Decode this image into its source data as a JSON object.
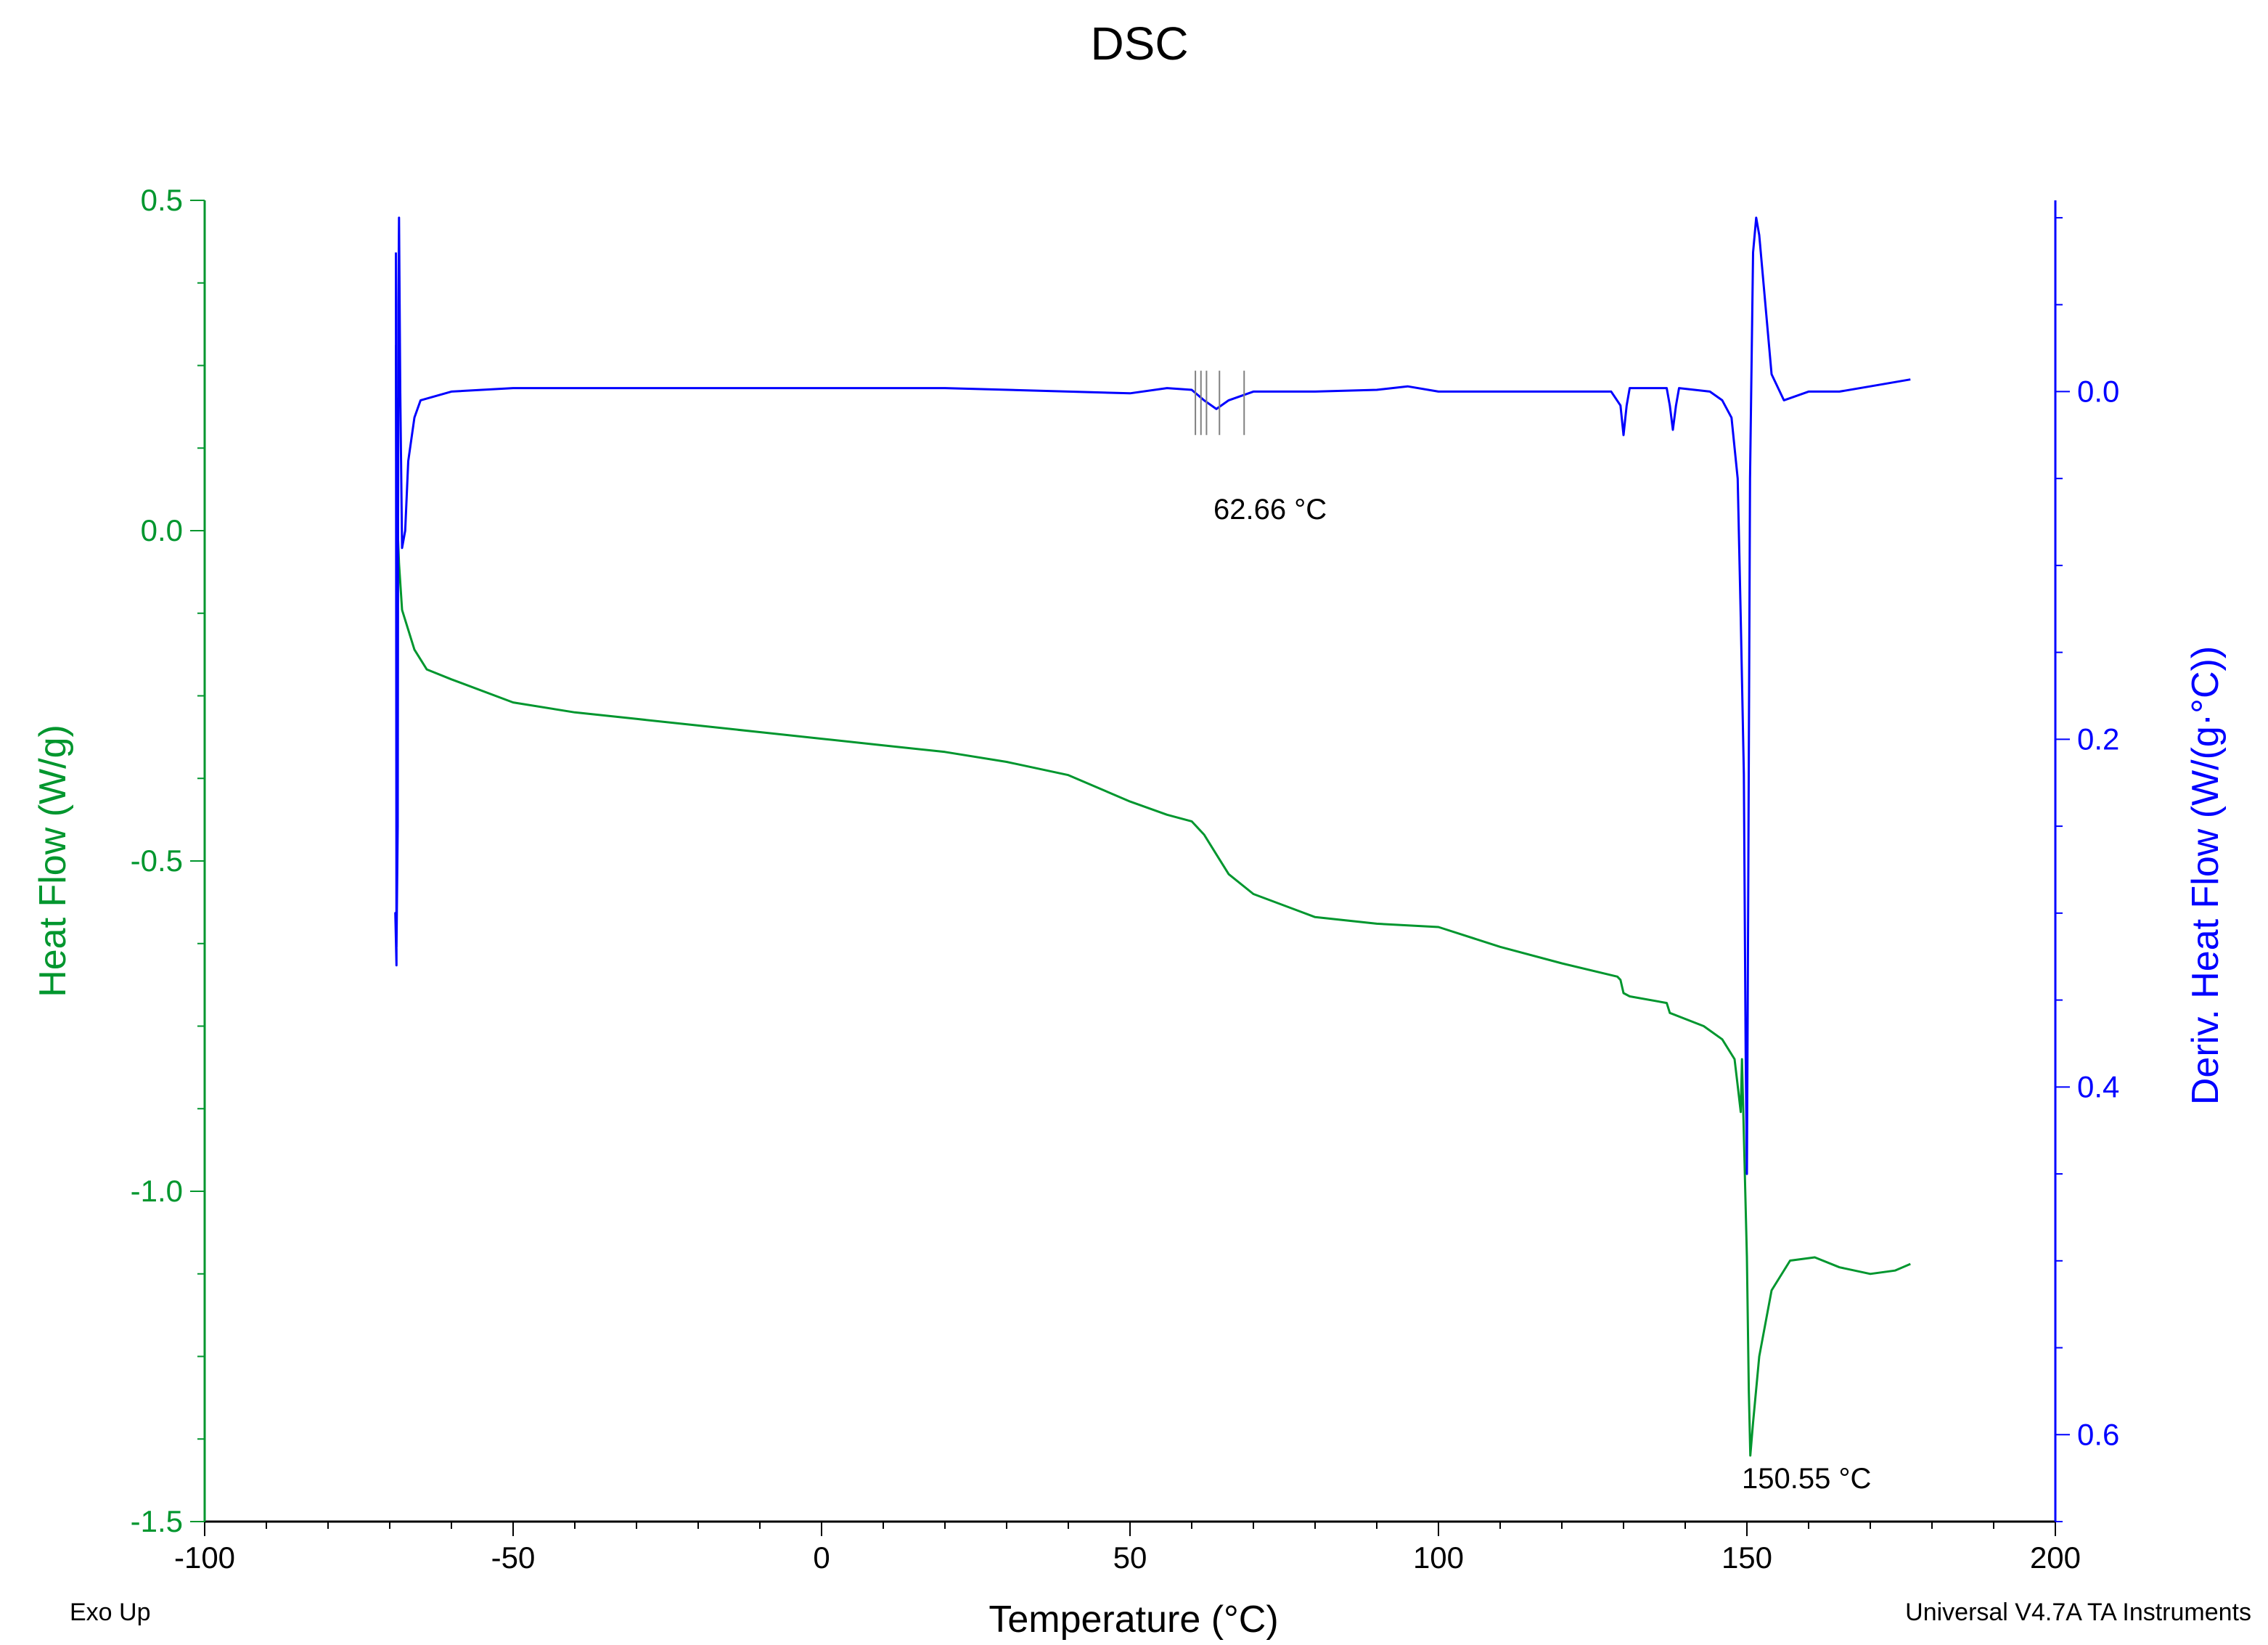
{
  "chart_data": {
    "type": "line",
    "title": "DSC",
    "xlabel": "Temperature (°C)",
    "ylabel_left": "Heat Flow (W/g)",
    "ylabel_right": "Deriv. Heat Flow (W/(g·°C))",
    "xlim": [
      -100,
      200
    ],
    "ylim_left": [
      -1.5,
      0.5
    ],
    "ylim_right": [
      0.65,
      -0.11
    ],
    "x_ticks": [
      -100,
      -50,
      0,
      50,
      100,
      150,
      200
    ],
    "x_tick_labels": [
      "-100",
      "-50",
      "0",
      "50",
      "100",
      "150",
      "200"
    ],
    "y_left_ticks": [
      -1.5,
      -1.0,
      -0.5,
      0.0,
      0.5
    ],
    "y_left_tick_labels": [
      "-1.5",
      "-1.0",
      "-0.5",
      "0.0",
      "0.5"
    ],
    "y_right_ticks": [
      0.0,
      0.2,
      0.4,
      0.6
    ],
    "y_right_tick_labels": [
      "0.0",
      "0.2",
      "0.4",
      "0.6"
    ],
    "grid": false,
    "colors": {
      "heat_flow": "#00962e",
      "deriv": "#0000ff",
      "marker": "#808080"
    },
    "series": [
      {
        "axis": "left",
        "points": [
          [
            -69,
            0.25
          ],
          [
            -69,
            0.28
          ],
          [
            -68.9,
            0.0
          ],
          [
            -68.9,
            0.2
          ],
          [
            -68.7,
            0.0
          ],
          [
            -68.5,
            -0.05
          ],
          [
            -68,
            -0.12
          ],
          [
            -66,
            -0.18
          ],
          [
            -64,
            -0.21
          ],
          [
            -60,
            -0.225
          ],
          [
            -50,
            -0.26
          ],
          [
            -40,
            -0.275
          ],
          [
            -30,
            -0.285
          ],
          [
            -20,
            -0.295
          ],
          [
            -10,
            -0.305
          ],
          [
            0,
            -0.315
          ],
          [
            10,
            -0.325
          ],
          [
            20,
            -0.335
          ],
          [
            30,
            -0.35
          ],
          [
            40,
            -0.37
          ],
          [
            50,
            -0.41
          ],
          [
            56,
            -0.43
          ],
          [
            60,
            -0.44
          ],
          [
            62,
            -0.46
          ],
          [
            64,
            -0.49
          ],
          [
            66,
            -0.52
          ],
          [
            70,
            -0.55
          ],
          [
            80,
            -0.585
          ],
          [
            90,
            -0.595
          ],
          [
            100,
            -0.6
          ],
          [
            110,
            -0.63
          ],
          [
            120,
            -0.655
          ],
          [
            129,
            -0.675
          ],
          [
            129.5,
            -0.68
          ],
          [
            130,
            -0.7
          ],
          [
            131,
            -0.705
          ],
          [
            137,
            -0.715
          ],
          [
            137.5,
            -0.73
          ],
          [
            143,
            -0.75
          ],
          [
            146,
            -0.77
          ],
          [
            148,
            -0.8
          ],
          [
            148.5,
            -0.84
          ],
          [
            149,
            -0.88
          ],
          [
            149.2,
            -0.8
          ],
          [
            149.6,
            -0.95
          ],
          [
            150,
            -1.1
          ],
          [
            150.3,
            -1.3
          ],
          [
            150.55,
            -1.4
          ],
          [
            151,
            -1.35
          ],
          [
            152,
            -1.25
          ],
          [
            154,
            -1.15
          ],
          [
            157,
            -1.105
          ],
          [
            161,
            -1.1
          ],
          [
            165,
            -1.115
          ],
          [
            170,
            -1.125
          ],
          [
            174,
            -1.12
          ],
          [
            176.5,
            -1.11
          ]
        ]
      },
      {
        "axis": "right",
        "points": [
          [
            -69,
            -0.08
          ],
          [
            -68.9,
            0.33
          ],
          [
            -69.1,
            0.3
          ],
          [
            -68.9,
            0.32
          ],
          [
            -68.7,
            0.25
          ],
          [
            -68.6,
            -0.05
          ],
          [
            -68.5,
            -0.1
          ],
          [
            -68.3,
            0.0
          ],
          [
            -68,
            0.09
          ],
          [
            -67.5,
            0.08
          ],
          [
            -67,
            0.04
          ],
          [
            -66,
            0.015
          ],
          [
            -65,
            0.005
          ],
          [
            -60,
            0.0
          ],
          [
            -50,
            -0.002
          ],
          [
            -20,
            -0.002
          ],
          [
            20,
            -0.002
          ],
          [
            40,
            0.0
          ],
          [
            50,
            0.001
          ],
          [
            56,
            -0.002
          ],
          [
            60,
            -0.001
          ],
          [
            62,
            0.005
          ],
          [
            64,
            0.01
          ],
          [
            66,
            0.005
          ],
          [
            70,
            0.0
          ],
          [
            80,
            0.0
          ],
          [
            90,
            -0.001
          ],
          [
            95,
            -0.003
          ],
          [
            100,
            0.0
          ],
          [
            120,
            0.0
          ],
          [
            128,
            0.0
          ],
          [
            129.5,
            0.008
          ],
          [
            130,
            0.025
          ],
          [
            130.5,
            0.008
          ],
          [
            131,
            -0.002
          ],
          [
            137,
            -0.002
          ],
          [
            137.5,
            0.008
          ],
          [
            138,
            0.022
          ],
          [
            138.5,
            0.008
          ],
          [
            139,
            -0.002
          ],
          [
            144,
            0.0
          ],
          [
            146,
            0.005
          ],
          [
            147.5,
            0.015
          ],
          [
            148.5,
            0.05
          ],
          [
            149,
            0.13
          ],
          [
            149.5,
            0.22
          ],
          [
            149.8,
            0.38
          ],
          [
            150,
            0.45
          ],
          [
            150.2,
            0.3
          ],
          [
            150.5,
            0.05
          ],
          [
            151,
            -0.08
          ],
          [
            151.5,
            -0.1
          ],
          [
            152,
            -0.09
          ],
          [
            153,
            -0.05
          ],
          [
            154,
            -0.01
          ],
          [
            156,
            0.005
          ],
          [
            160,
            0.0
          ],
          [
            165,
            0.0
          ],
          [
            170,
            -0.003
          ],
          [
            176.5,
            -0.007
          ]
        ]
      }
    ],
    "annotations": [
      {
        "text": "62.66 °C",
        "x": 62.66
      },
      {
        "text": "150.55 °C",
        "x": 150.55
      }
    ],
    "glass_transition_markers_x": [
      60.6,
      61.5,
      62.4,
      64.5,
      68.5
    ]
  },
  "footer": {
    "left_note": "Exo Up",
    "right_note": "Universal V4.7A TA Instruments"
  }
}
